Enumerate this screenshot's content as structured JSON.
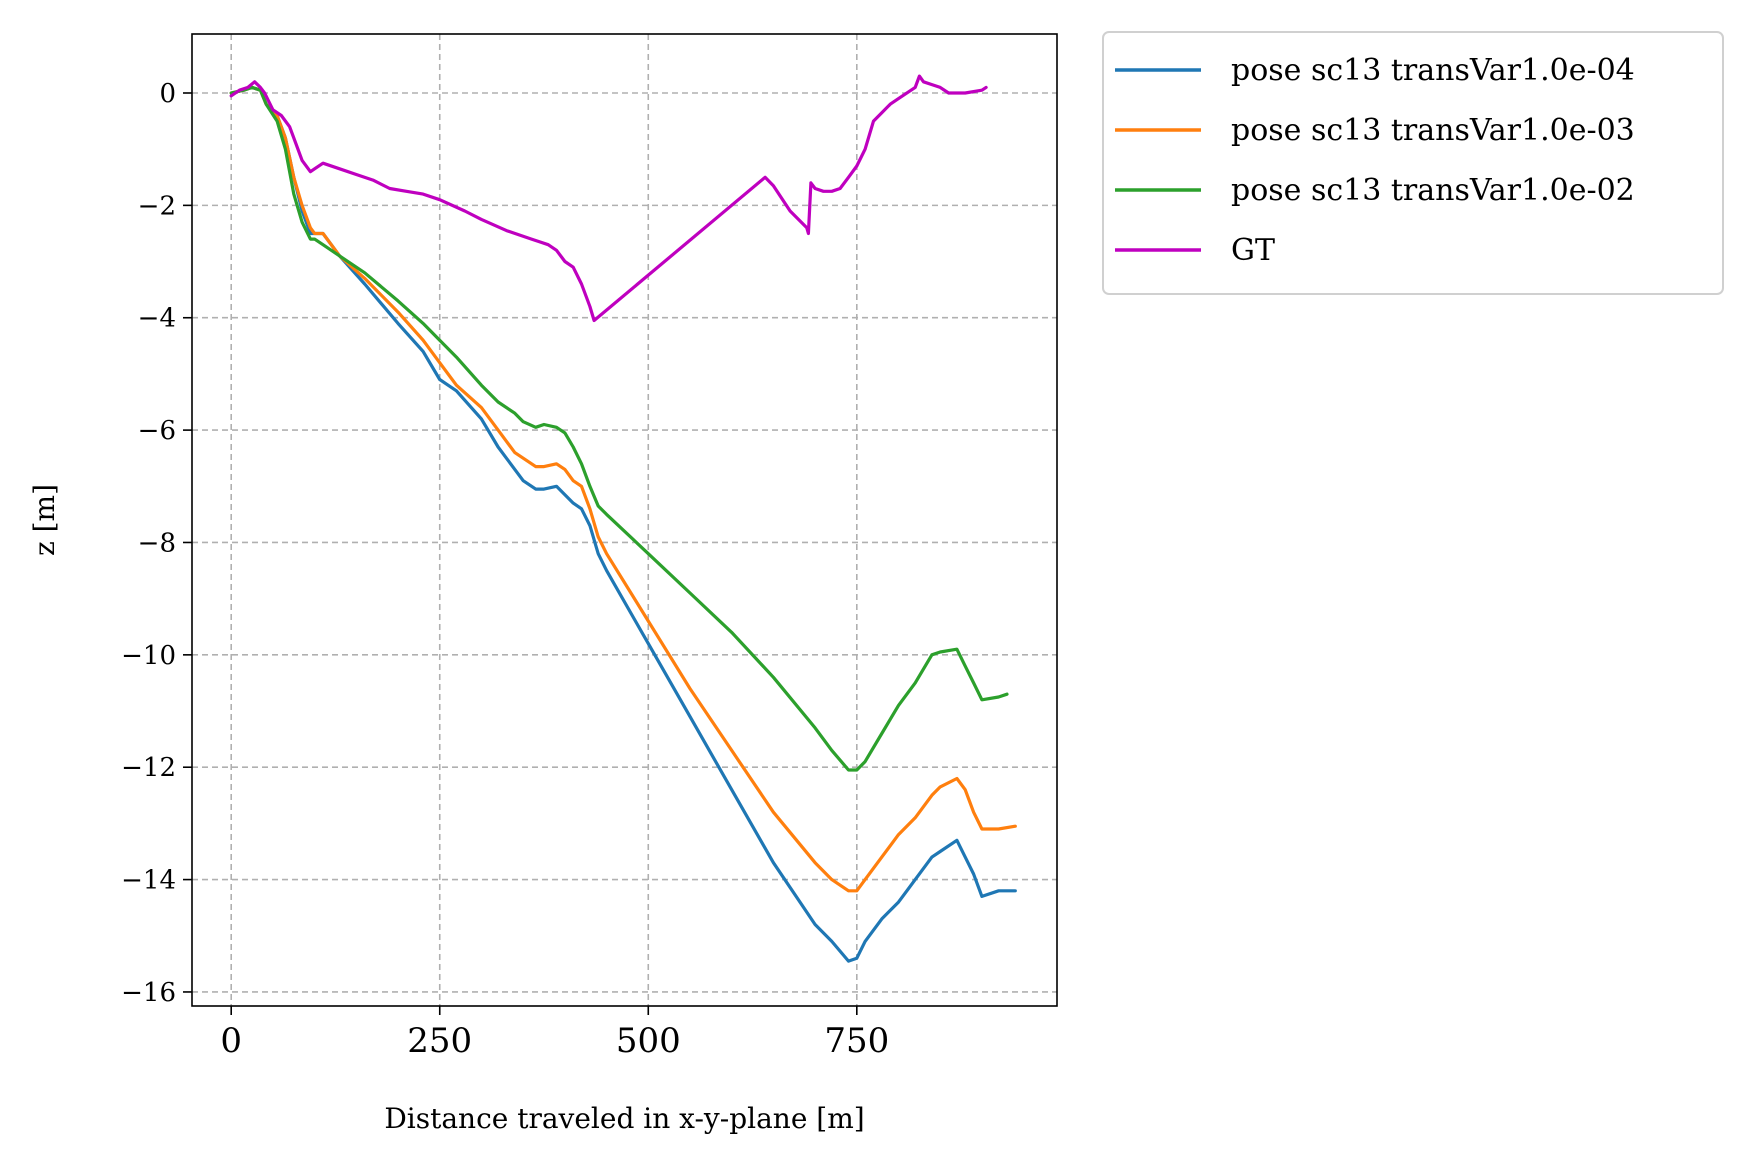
{
  "chart_data": {
    "type": "line",
    "title": "",
    "xlabel": "Distance traveled in x-y-plane [m]",
    "ylabel": "z [m]",
    "xlim": [
      -47,
      990
    ],
    "ylim": [
      -16.25,
      1.05
    ],
    "xticks": [
      0,
      250,
      500,
      750
    ],
    "xtick_labels": [
      "0",
      "250",
      "500",
      "750"
    ],
    "yticks": [
      0,
      -2,
      -4,
      -6,
      -8,
      -10,
      -12,
      -14,
      -16
    ],
    "ytick_labels": [
      "0",
      "−2",
      "−4",
      "−6",
      "−8",
      "−10",
      "−12",
      "−14",
      "−16"
    ],
    "grid": true,
    "legend_position": "outside-top-right",
    "series": [
      {
        "name": "pose sc13 transVar1.0e-04",
        "color": "#1f77b4",
        "x": [
          0,
          15,
          25,
          35,
          42,
          55,
          65,
          75,
          85,
          95,
          100,
          110,
          130,
          160,
          200,
          230,
          250,
          270,
          300,
          320,
          340,
          350,
          365,
          375,
          390,
          400,
          410,
          420,
          430,
          440,
          450,
          500,
          550,
          600,
          650,
          700,
          720,
          740,
          750,
          760,
          780,
          800,
          820,
          840,
          850,
          870,
          880,
          890,
          900,
          920,
          940
        ],
        "y": [
          0,
          0.05,
          0.1,
          0.05,
          -0.2,
          -0.4,
          -0.8,
          -1.5,
          -2.1,
          -2.5,
          -2.5,
          -2.5,
          -2.9,
          -3.4,
          -4.1,
          -4.6,
          -5.1,
          -5.3,
          -5.8,
          -6.3,
          -6.7,
          -6.9,
          -7.05,
          -7.05,
          -7.0,
          -7.15,
          -7.3,
          -7.4,
          -7.7,
          -8.2,
          -8.5,
          -9.8,
          -11.1,
          -12.4,
          -13.7,
          -14.8,
          -15.1,
          -15.45,
          -15.4,
          -15.1,
          -14.7,
          -14.4,
          -14.0,
          -13.6,
          -13.5,
          -13.3,
          -13.6,
          -13.9,
          -14.3,
          -14.2,
          -14.2
        ]
      },
      {
        "name": "pose sc13 transVar1.0e-03",
        "color": "#ff7f0e",
        "x": [
          0,
          15,
          25,
          35,
          42,
          55,
          65,
          75,
          85,
          95,
          100,
          110,
          130,
          160,
          200,
          230,
          250,
          270,
          300,
          320,
          340,
          350,
          365,
          375,
          390,
          400,
          410,
          420,
          430,
          440,
          450,
          500,
          550,
          600,
          650,
          700,
          720,
          740,
          750,
          760,
          780,
          800,
          820,
          840,
          850,
          870,
          880,
          890,
          900,
          920,
          940
        ],
        "y": [
          0,
          0.05,
          0.1,
          0.05,
          -0.2,
          -0.4,
          -0.8,
          -1.5,
          -2.0,
          -2.4,
          -2.5,
          -2.5,
          -2.9,
          -3.3,
          -3.9,
          -4.4,
          -4.8,
          -5.2,
          -5.6,
          -6.0,
          -6.4,
          -6.5,
          -6.65,
          -6.65,
          -6.6,
          -6.7,
          -6.9,
          -7.0,
          -7.4,
          -7.9,
          -8.2,
          -9.4,
          -10.6,
          -11.7,
          -12.8,
          -13.7,
          -14.0,
          -14.2,
          -14.2,
          -14.0,
          -13.6,
          -13.2,
          -12.9,
          -12.5,
          -12.35,
          -12.2,
          -12.4,
          -12.8,
          -13.1,
          -13.1,
          -13.05
        ]
      },
      {
        "name": "pose sc13 transVar1.0e-02",
        "color": "#2ca02c",
        "x": [
          0,
          15,
          25,
          35,
          42,
          55,
          65,
          75,
          85,
          95,
          100,
          110,
          130,
          160,
          200,
          230,
          250,
          270,
          300,
          320,
          340,
          350,
          365,
          375,
          390,
          400,
          410,
          420,
          430,
          440,
          450,
          500,
          550,
          600,
          650,
          700,
          720,
          740,
          750,
          760,
          780,
          800,
          820,
          840,
          850,
          870,
          880,
          890,
          900,
          920,
          930
        ],
        "y": [
          0,
          0.05,
          0.1,
          0.05,
          -0.2,
          -0.5,
          -1.0,
          -1.8,
          -2.3,
          -2.6,
          -2.6,
          -2.7,
          -2.9,
          -3.2,
          -3.7,
          -4.1,
          -4.4,
          -4.7,
          -5.2,
          -5.5,
          -5.7,
          -5.85,
          -5.95,
          -5.9,
          -5.95,
          -6.05,
          -6.3,
          -6.6,
          -7.0,
          -7.35,
          -7.5,
          -8.2,
          -8.9,
          -9.6,
          -10.4,
          -11.3,
          -11.7,
          -12.05,
          -12.05,
          -11.9,
          -11.4,
          -10.9,
          -10.5,
          -10.0,
          -9.95,
          -9.9,
          -10.2,
          -10.5,
          -10.8,
          -10.75,
          -10.7
        ]
      },
      {
        "name": "GT",
        "color": "#bf00bf",
        "x": [
          0,
          10,
          20,
          28,
          35,
          40,
          50,
          60,
          70,
          75,
          85,
          95,
          100,
          110,
          130,
          150,
          170,
          190,
          210,
          230,
          250,
          280,
          300,
          330,
          360,
          370,
          380,
          390,
          400,
          410,
          420,
          430,
          435,
          640,
          650,
          670,
          690,
          692,
          695,
          700,
          710,
          720,
          730,
          740,
          750,
          760,
          770,
          780,
          790,
          800,
          820,
          825,
          830,
          840,
          850,
          860,
          880,
          900,
          905
        ],
        "y": [
          -0.05,
          0.05,
          0.1,
          0.2,
          0.1,
          0.0,
          -0.3,
          -0.4,
          -0.6,
          -0.8,
          -1.2,
          -1.4,
          -1.35,
          -1.25,
          -1.35,
          -1.45,
          -1.55,
          -1.7,
          -1.75,
          -1.8,
          -1.9,
          -2.1,
          -2.25,
          -2.45,
          -2.6,
          -2.65,
          -2.7,
          -2.8,
          -3.0,
          -3.1,
          -3.4,
          -3.8,
          -4.05,
          -1.5,
          -1.65,
          -2.1,
          -2.4,
          -2.5,
          -1.6,
          -1.7,
          -1.75,
          -1.75,
          -1.7,
          -1.5,
          -1.3,
          -1.0,
          -0.5,
          -0.35,
          -0.2,
          -0.1,
          0.1,
          0.3,
          0.2,
          0.15,
          0.1,
          0.0,
          0.0,
          0.05,
          0.1
        ]
      }
    ]
  }
}
